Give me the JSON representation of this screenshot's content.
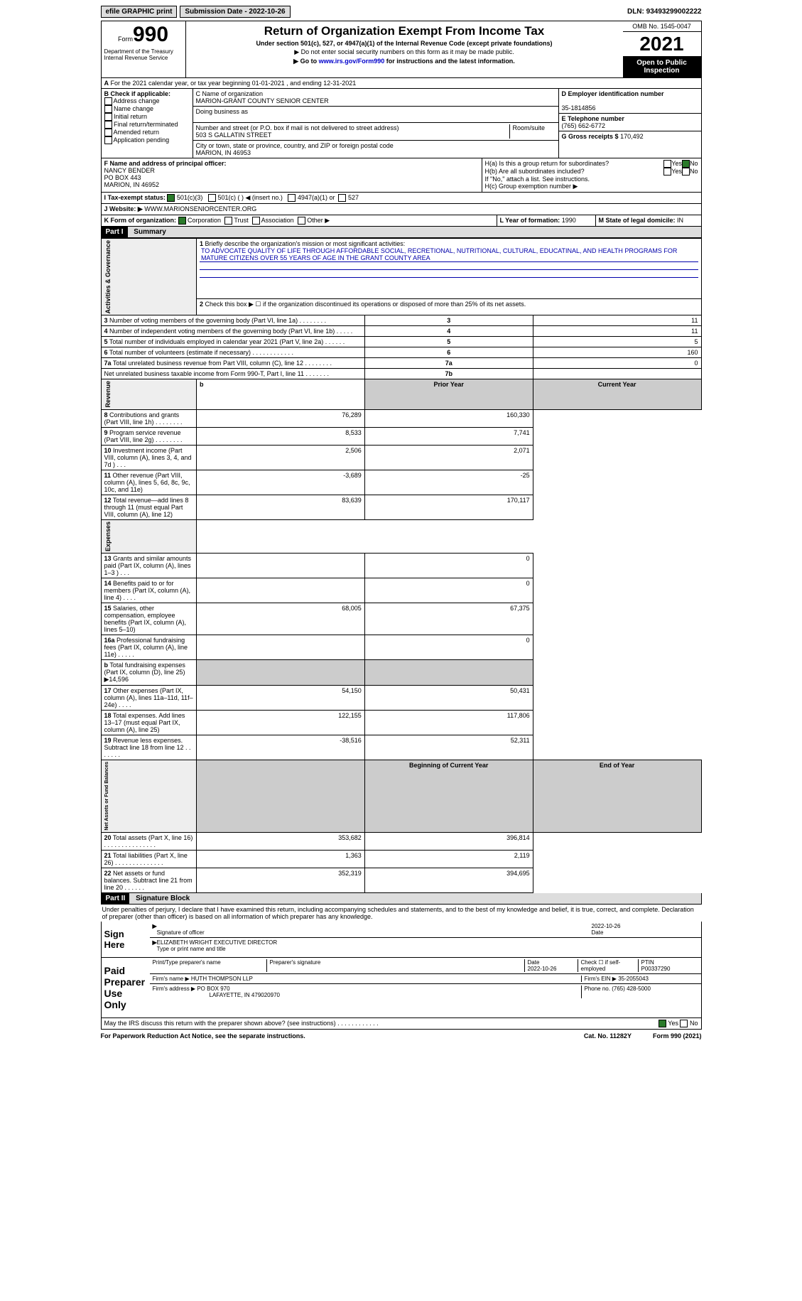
{
  "topbar": {
    "efile": "efile GRAPHIC print",
    "submission_label": "Submission Date - 2022-10-26",
    "dln_label": "DLN: 93493299002222"
  },
  "header": {
    "form_label": "Form",
    "form_number": "990",
    "dept": "Department of the Treasury\nInternal Revenue Service",
    "title": "Return of Organization Exempt From Income Tax",
    "subtitle": "Under section 501(c), 527, or 4947(a)(1) of the Internal Revenue Code (except private foundations)",
    "note1": "▶ Do not enter social security numbers on this form as it may be made public.",
    "note2_pre": "▶ Go to ",
    "note2_link": "www.irs.gov/Form990",
    "note2_post": " for instructions and the latest information.",
    "omb": "OMB No. 1545-0047",
    "year": "2021",
    "open": "Open to Public Inspection"
  },
  "sectA": "For the 2021 calendar year, or tax year beginning 01-01-2021   , and ending 12-31-2021",
  "boxB": {
    "label": "B Check if applicable:",
    "items": [
      "Address change",
      "Name change",
      "Initial return",
      "Final return/terminated",
      "Amended return",
      "Application pending"
    ]
  },
  "boxC": {
    "label_name": "C Name of organization",
    "org_name": "MARION-GRANT COUNTY SENIOR CENTER",
    "dba_label": "Doing business as",
    "street_label": "Number and street (or P.O. box if mail is not delivered to street address)",
    "room_label": "Room/suite",
    "street": "503 S GALLATIN STREET",
    "city_label": "City or town, state or province, country, and ZIP or foreign postal code",
    "city": "MARION, IN  46953"
  },
  "boxD": {
    "label": "D Employer identification number",
    "value": "35-1814856"
  },
  "boxE": {
    "label": "E Telephone number",
    "value": "(765) 662-6772"
  },
  "boxG": {
    "label": "G Gross receipts $",
    "value": "170,492"
  },
  "boxF": {
    "label": "F  Name and address of principal officer:",
    "name": "NANCY BENDER",
    "addr1": "PO BOX 443",
    "addr2": "MARION, IN  46952"
  },
  "boxH": {
    "ha": "H(a)  Is this a group return for subordinates?",
    "hb": "H(b)  Are all subordinates included?",
    "hb_note": "If \"No,\" attach a list. See instructions.",
    "hc": "H(c)  Group exemption number ▶",
    "yes": "Yes",
    "no": "No"
  },
  "boxI": {
    "label": "I  Tax-exempt status:",
    "c3": "501(c)(3)",
    "c": "501(c) (  ) ◀ (insert no.)",
    "a1": "4947(a)(1) or",
    "s527": "527"
  },
  "boxJ": {
    "label": "J  Website: ▶",
    "value": "WWW.MARIONSENIORCENTER.ORG"
  },
  "boxK": {
    "label": "K Form of organization:",
    "corp": "Corporation",
    "trust": "Trust",
    "assoc": "Association",
    "other": "Other ▶"
  },
  "boxL": {
    "label": "L Year of formation:",
    "value": "1990"
  },
  "boxM": {
    "label": "M State of legal domicile:",
    "value": "IN"
  },
  "part1": {
    "label": "Part I",
    "title": "Summary"
  },
  "summary": {
    "q1": "Briefly describe the organization's mission or most significant activities:",
    "mission": "TO ADVOCATE QUALITY OF LIFE THROUGH AFFORDABLE SOCIAL, RECRETIONAL, NUTRITIONAL, CULTURAL, EDUCATINAL, AND HEALTH PROGRAMS FOR MATURE CITIZENS OVER 55 YEARS OF AGE IN THE GRANT COUNTY AREA",
    "q2": "Check this box ▶ ☐  if the organization discontinued its operations or disposed of more than 25% of its net assets.",
    "rows_ag": [
      {
        "n": "3",
        "t": "Number of voting members of the governing body (Part VI, line 1a)  .    .    .    .    .    .    .    .",
        "b": "3",
        "v": "11"
      },
      {
        "n": "4",
        "t": "Number of independent voting members of the governing body (Part VI, line 1b)  .   .   .   .   .",
        "b": "4",
        "v": "11"
      },
      {
        "n": "5",
        "t": "Total number of individuals employed in calendar year 2021 (Part V, line 2a)  .    .    .    .    .    .",
        "b": "5",
        "v": "5"
      },
      {
        "n": "6",
        "t": "Total number of volunteers (estimate if necessary)     .     .     .     .     .     .     .     .     .     .     .     .",
        "b": "6",
        "v": "160"
      },
      {
        "n": "7a",
        "t": "Total unrelated business revenue from Part VIII, column (C), line 12    .    .    .    .    .    .    .    .",
        "b": "7a",
        "v": "0"
      },
      {
        "n": "",
        "t": "Net unrelated business taxable income from Form 990-T, Part I, line 11   .    .    .    .    .    .    .",
        "b": "7b",
        "v": ""
      }
    ],
    "header_py": "Prior Year",
    "header_cy": "Current Year",
    "rows_rev": [
      {
        "n": "8",
        "t": "Contributions and grants (Part VIII, line 1h)   .    .    .    .    .    .    .    .",
        "py": "76,289",
        "cy": "160,330"
      },
      {
        "n": "9",
        "t": "Program service revenue (Part VIII, line 2g)   .    .    .    .    .    .    .    .",
        "py": "8,533",
        "cy": "7,741"
      },
      {
        "n": "10",
        "t": "Investment income (Part VIII, column (A), lines 3, 4, and 7d )    .    .    .",
        "py": "2,506",
        "cy": "2,071"
      },
      {
        "n": "11",
        "t": "Other revenue (Part VIII, column (A), lines 5, 6d, 8c, 9c, 10c, and 11e)",
        "py": "-3,689",
        "cy": "-25"
      },
      {
        "n": "12",
        "t": "Total revenue—add lines 8 through 11 (must equal Part VIII, column (A), line 12)",
        "py": "83,639",
        "cy": "170,117"
      }
    ],
    "rows_exp": [
      {
        "n": "13",
        "t": "Grants and similar amounts paid (Part IX, column (A), lines 1–3 )  .   .   .",
        "py": "",
        "cy": "0"
      },
      {
        "n": "14",
        "t": "Benefits paid to or for members (Part IX, column (A), line 4)  .    .    .    .",
        "py": "",
        "cy": "0"
      },
      {
        "n": "15",
        "t": "Salaries, other compensation, employee benefits (Part IX, column (A), lines 5–10)",
        "py": "68,005",
        "cy": "67,375"
      },
      {
        "n": "16a",
        "t": "Professional fundraising fees (Part IX, column (A), line 11e)   .   .   .   .   .",
        "py": "",
        "cy": "0"
      },
      {
        "n": "b",
        "t": "Total fundraising expenses (Part IX, column (D), line 25) ▶14,596",
        "py": "shade",
        "cy": "shade"
      },
      {
        "n": "17",
        "t": "Other expenses (Part IX, column (A), lines 11a–11d, 11f–24e)   .   .   .   .",
        "py": "54,150",
        "cy": "50,431"
      },
      {
        "n": "18",
        "t": "Total expenses. Add lines 13–17 (must equal Part IX, column (A), line 25)",
        "py": "122,155",
        "cy": "117,806"
      },
      {
        "n": "19",
        "t": "Revenue less expenses. Subtract line 18 from line 12  .    .    .    .    .    .    .",
        "py": "-38,516",
        "cy": "52,311"
      }
    ],
    "header_bcy": "Beginning of Current Year",
    "header_eoy": "End of Year",
    "rows_na": [
      {
        "n": "20",
        "t": "Total assets (Part X, line 16)  .    .    .    .    .    .    .    .    .    .    .    .    .    .    .",
        "py": "353,682",
        "cy": "396,814"
      },
      {
        "n": "21",
        "t": "Total liabilities (Part X, line 26)  .    .    .    .    .    .    .    .    .    .    .    .    .    .",
        "py": "1,363",
        "cy": "2,119"
      },
      {
        "n": "22",
        "t": "Net assets or fund balances. Subtract line 21 from line 20   .   .   .   .   .   .",
        "py": "352,319",
        "cy": "394,695"
      }
    ],
    "vlabel_ag": "Activities & Governance",
    "vlabel_rev": "Revenue",
    "vlabel_exp": "Expenses",
    "vlabel_na": "Net Assets or Fund Balances"
  },
  "part2": {
    "label": "Part II",
    "title": "Signature Block"
  },
  "penalties": "Under penalties of perjury, I declare that I have examined this return, including accompanying schedules and statements, and to the best of my knowledge and belief, it is true, correct, and complete. Declaration of preparer (other than officer) is based on all information of which preparer has any knowledge.",
  "sign": {
    "here": "Sign Here",
    "sig_officer": "Signature of officer",
    "date": "Date",
    "sig_date": "2022-10-26",
    "name": "ELIZABETH WRIGHT  EXECUTIVE DIRECTOR",
    "name_label": "Type or print name and title"
  },
  "preparer": {
    "label": "Paid Preparer Use Only",
    "print_label": "Print/Type preparer's name",
    "sig_label": "Preparer's signature",
    "date_label": "Date",
    "date": "2022-10-26",
    "check_label": "Check ☐ if self-employed",
    "ptin_label": "PTIN",
    "ptin": "P00337290",
    "firm_label": "Firm's name    ▶",
    "firm": "HUTH THOMPSON LLP",
    "ein_label": "Firm's EIN ▶",
    "ein": "35-2055043",
    "addr_label": "Firm's address ▶",
    "addr": "PO BOX 970",
    "addr2": "LAFAYETTE, IN  479020970",
    "phone_label": "Phone no.",
    "phone": "(765) 428-5000"
  },
  "may_discuss": "May the IRS discuss this return with the preparer shown above? (see instructions)    .    .    .    .    .    .    .    .    .    .    .    .",
  "footer": {
    "paperwork": "For Paperwork Reduction Act Notice, see the separate instructions.",
    "cat": "Cat. No. 11282Y",
    "form": "Form 990 (2021)"
  }
}
